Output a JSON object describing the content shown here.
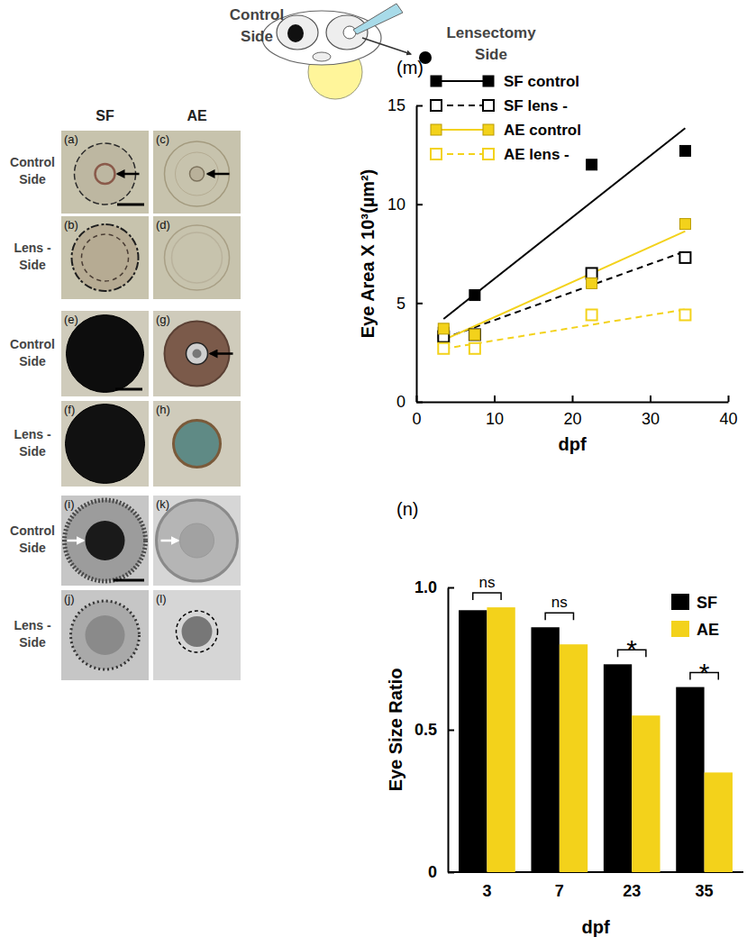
{
  "schematic": {
    "left_label": [
      "Control",
      "Side"
    ],
    "right_label": [
      "Lensectomy",
      "Side"
    ]
  },
  "photo_panels": {
    "columns": [
      "SF",
      "AE"
    ],
    "row_labels": [
      [
        "Control",
        "Side"
      ],
      [
        "Lens -",
        "Side"
      ],
      [
        "Control",
        "Side"
      ],
      [
        "Lens -",
        "Side"
      ],
      [
        "Control",
        "Side"
      ],
      [
        "Lens -",
        "Side"
      ]
    ],
    "panel_labels": [
      [
        "(a)",
        "(c)"
      ],
      [
        "(b)",
        "(d)"
      ],
      [
        "(e)",
        "(g)"
      ],
      [
        "(f)",
        "(h)"
      ],
      [
        "(i)",
        "(k)"
      ],
      [
        "(j)",
        "(l)"
      ]
    ]
  },
  "chart_data": [
    {
      "type": "scatter",
      "title": "(m)",
      "x_label": "dpf",
      "y_label": "Eye Area X 10³(µm²)",
      "x": [
        3.5,
        7.5,
        22.5,
        34.5
      ],
      "xlim": [
        0,
        40
      ],
      "xticks": [
        0,
        10,
        20,
        30,
        40
      ],
      "ylim": [
        0,
        15
      ],
      "yticks": [
        0,
        5,
        10,
        15
      ],
      "legend": "top-left",
      "series": [
        {
          "name": "SF control",
          "color": "#000000",
          "marker": "square",
          "line_style": "solid",
          "values": [
            3.5,
            5.4,
            12,
            12.7
          ]
        },
        {
          "name": "SF lens -",
          "color": "#000000",
          "marker": "square-open",
          "line_style": "dashed",
          "values": [
            3.3,
            3.4,
            6.5,
            7.3
          ]
        },
        {
          "name": "AE control",
          "color": "#f3d21b",
          "marker": "square",
          "line_style": "solid",
          "values": [
            3.7,
            3.4,
            6.0,
            9.0
          ]
        },
        {
          "name": "AE lens -",
          "color": "#f3d21b",
          "marker": "square-open",
          "line_style": "dashed",
          "values": [
            2.7,
            2.7,
            4.4,
            4.4
          ]
        }
      ]
    },
    {
      "type": "bar",
      "title": "(n)",
      "x_label": "dpf",
      "y_label": "Eye Size Ratio",
      "categories": [
        "3",
        "7",
        "23",
        "35"
      ],
      "ylim": [
        0,
        1
      ],
      "yticks": [
        0,
        0.5,
        {
          "value": 1,
          "label": "1.0"
        }
      ],
      "legend": "top-right",
      "series": [
        {
          "name": "SF",
          "color": "#000000",
          "values": [
            0.92,
            0.86,
            0.73,
            0.65
          ]
        },
        {
          "name": "AE",
          "color": "#f3d21b",
          "values": [
            0.93,
            0.8,
            0.55,
            0.35
          ]
        }
      ],
      "annotations": [
        "ns",
        "ns",
        "*",
        "*"
      ]
    }
  ]
}
